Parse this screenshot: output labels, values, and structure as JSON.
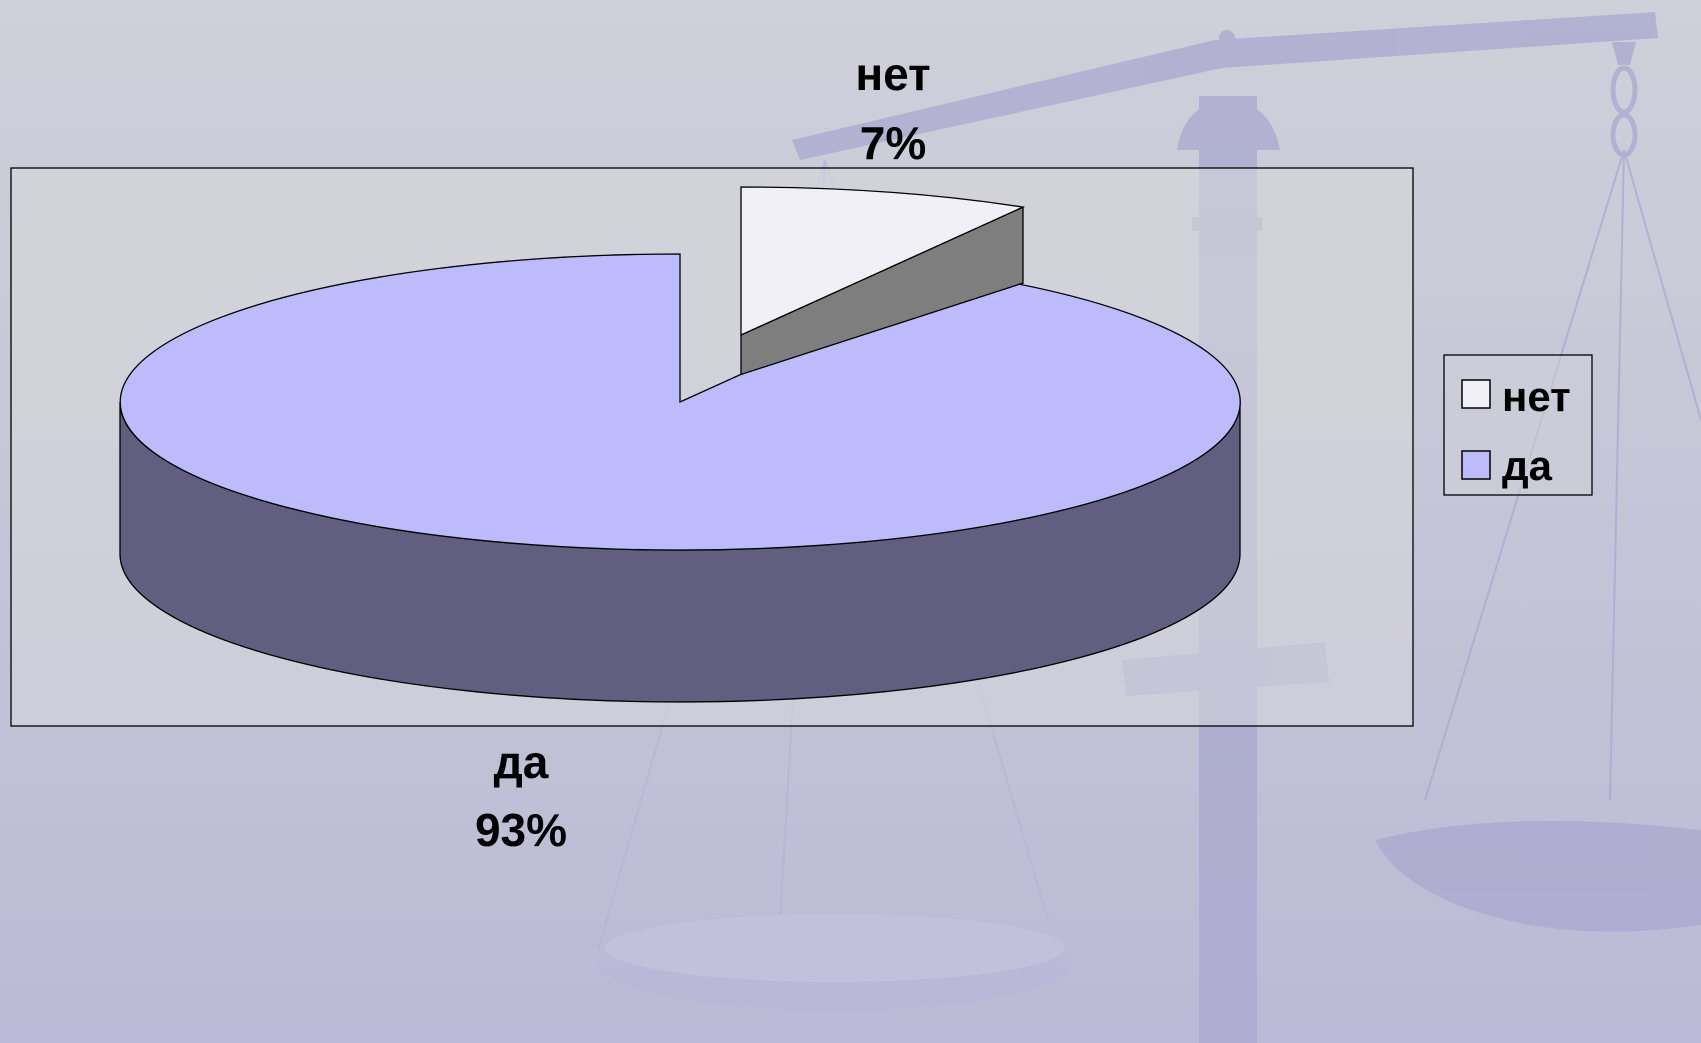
{
  "colors": {
    "background_top": "#cfd0d9",
    "background_bottom": "#bbbad6",
    "slice_da_top": "#bdbbfc",
    "slice_da_side": "#625e80",
    "slice_net_top": "#f0f0f6",
    "slice_net_side": "#7e7e7e",
    "plot_area": "#d9d9dd"
  },
  "background": {
    "icon": "scales-of-justice-watermark"
  },
  "chart_data": {
    "type": "pie",
    "style": "3d-exploded",
    "title": "",
    "slices": [
      {
        "label": "нет",
        "value": 7,
        "value_text": "7%",
        "color": "#f0f0f6"
      },
      {
        "label": "да",
        "value": 93,
        "value_text": "93%",
        "color": "#bdbbfc"
      }
    ],
    "legend": {
      "position": "right",
      "entries": [
        "нет",
        "да"
      ]
    }
  }
}
